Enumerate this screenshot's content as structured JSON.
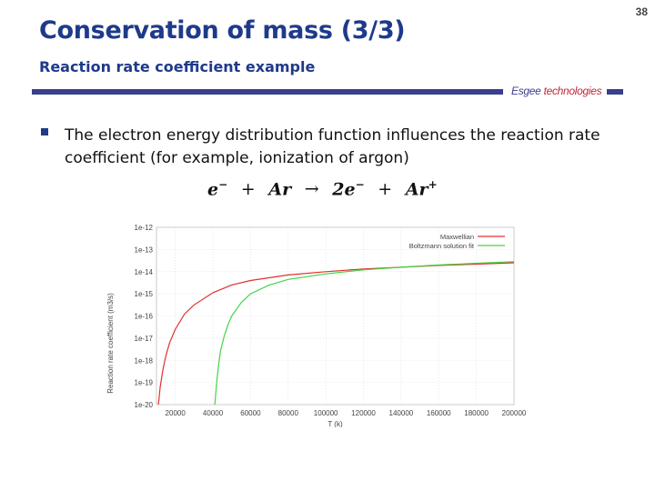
{
  "slide": {
    "title": "Conservation of mass (3/3)",
    "subtitle": "Reaction rate coefficient example",
    "page_number": "38",
    "brand": {
      "part1": "Esgee ",
      "part2": "technologies",
      "colors": {
        "bar": "#3a3f8c",
        "accent": "#c0263a"
      }
    },
    "bullet": "The electron energy distribution function influences the reaction rate coefficient (for example, ionization of argon)",
    "equation": {
      "lhs1": "e",
      "lhs1_sup": "−",
      "plus1": "+",
      "lhs2": "Ar",
      "arrow": "→",
      "rhs_coef": "2e",
      "rhs_coef_sup": "−",
      "plus2": "+",
      "rhs2": "Ar",
      "rhs2_sup": "+"
    }
  },
  "chart_data": {
    "type": "line",
    "xlabel": "T (k)",
    "ylabel": "Reaction rate coefficient (m3/s)",
    "xlim": [
      10000,
      200000
    ],
    "ylim_log10": [
      -20,
      -12
    ],
    "x_ticks": [
      "20000",
      "40000",
      "60000",
      "80000",
      "100000",
      "120000",
      "140000",
      "160000",
      "180000",
      "200000"
    ],
    "y_ticks": [
      "1e-12",
      "1e-13",
      "1e-14",
      "1e-15",
      "1e-16",
      "1e-17",
      "1e-18",
      "1e-19",
      "1e-20"
    ],
    "legend_position": "top-right",
    "grid": true,
    "series": [
      {
        "name": "Maxwellian",
        "color": "#e03030",
        "x": [
          11000,
          12000,
          13500,
          15000,
          17000,
          20000,
          25000,
          30000,
          40000,
          50000,
          60000,
          80000,
          100000,
          120000,
          140000,
          160000,
          180000,
          200000
        ],
        "y": [
          -20.0,
          -19.2,
          -18.4,
          -17.8,
          -17.2,
          -16.6,
          -15.9,
          -15.5,
          -14.95,
          -14.6,
          -14.4,
          -14.15,
          -14.0,
          -13.88,
          -13.8,
          -13.72,
          -13.66,
          -13.6
        ]
      },
      {
        "name": "Boltzmann solution fit",
        "color": "#44d444",
        "x": [
          41000,
          42000,
          43000,
          44000,
          46000,
          48000,
          50000,
          55000,
          60000,
          70000,
          80000,
          100000,
          120000,
          140000,
          160000,
          180000,
          200000
        ],
        "y": [
          -20.0,
          -19.0,
          -18.2,
          -17.6,
          -16.9,
          -16.4,
          -16.0,
          -15.4,
          -15.0,
          -14.6,
          -14.35,
          -14.1,
          -13.92,
          -13.8,
          -13.7,
          -13.62,
          -13.55
        ]
      }
    ]
  }
}
